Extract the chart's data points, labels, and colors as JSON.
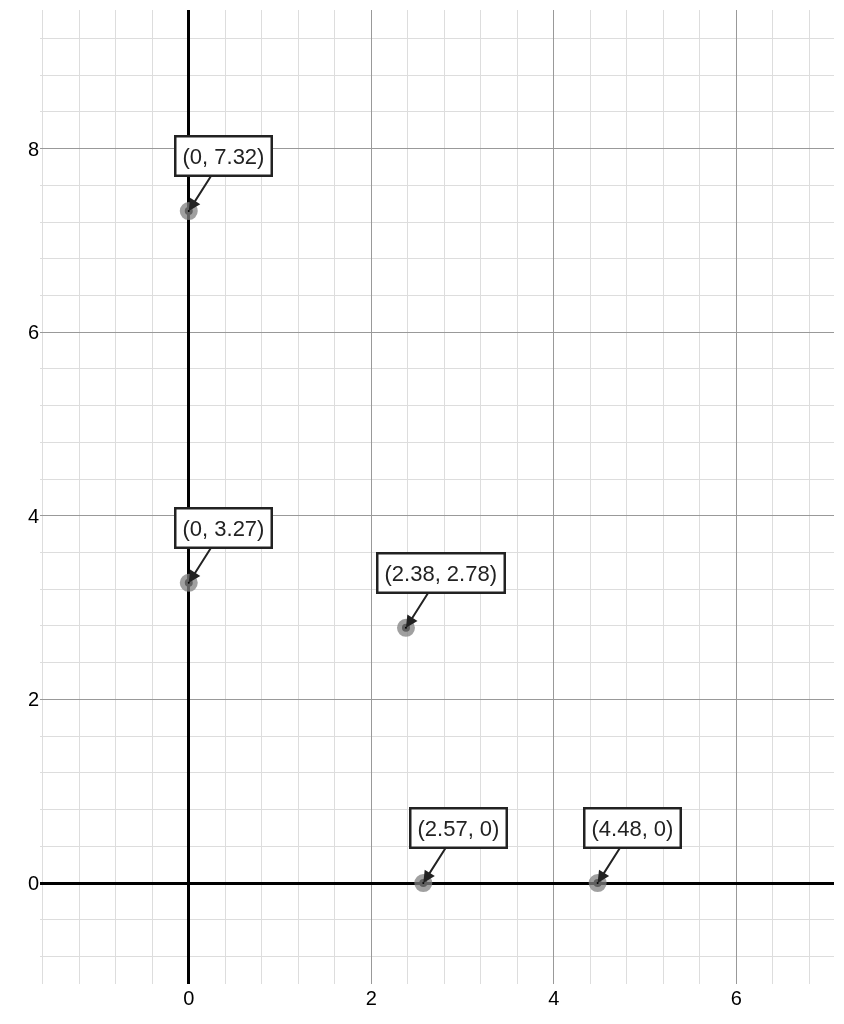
{
  "chart_data": {
    "type": "scatter",
    "x": [
      0,
      0,
      2.38,
      2.57,
      4.48
    ],
    "values": [
      7.32,
      3.27,
      2.78,
      0,
      0
    ],
    "value_labels": [
      "(0, 7.32)",
      "(0, 3.27)",
      "(2.38, 2.78)",
      "(2.57, 0)",
      "(4.48, 0)"
    ],
    "color": "#000000",
    "marker": "circle",
    "xlim": [
      -1.63,
      7.07
    ],
    "ylim": [
      -1.1,
      9.51
    ],
    "xticks": [
      0,
      2,
      4,
      6
    ],
    "yticks": [
      0,
      2,
      4,
      6,
      8
    ],
    "grid": true
  }
}
